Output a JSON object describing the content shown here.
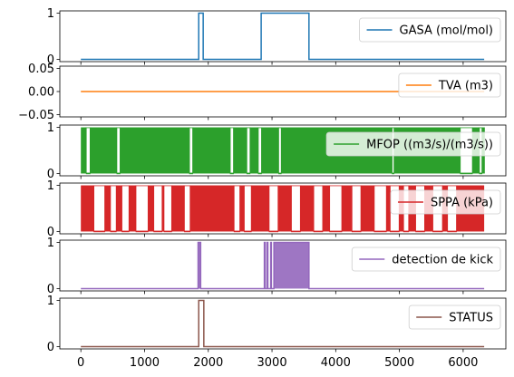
{
  "chart_data": {
    "type": "line",
    "shared_x_ticks": [
      0,
      1000,
      2000,
      3000,
      4000,
      5000,
      6000
    ],
    "xlim": [
      -330,
      6670
    ],
    "panels": [
      {
        "legend": "GASA (mol/mol)",
        "color": "#1f77b4",
        "ylim": [
          -0.05,
          1.05
        ],
        "yticks": [
          0,
          1
        ],
        "ytick_labels": [
          "0",
          "1"
        ],
        "mode": "step",
        "segments": [
          [
            0,
            0
          ],
          [
            1850,
            1
          ],
          [
            1920,
            0
          ],
          [
            2830,
            1
          ],
          [
            3580,
            0
          ],
          [
            6330,
            0
          ]
        ]
      },
      {
        "legend": "TVA (m3)",
        "color": "#ff7f0e",
        "ylim": [
          -0.055,
          0.055
        ],
        "yticks": [
          -0.05,
          0,
          0.05
        ],
        "ytick_labels": [
          "−0.05",
          "0.00",
          "0.05"
        ],
        "mode": "step",
        "segments": [
          [
            0,
            0
          ],
          [
            6330,
            0
          ]
        ]
      },
      {
        "legend": "MFOP ((m3/s)/(m3/s))",
        "color": "#2ca02c",
        "ylim": [
          -0.05,
          1.05
        ],
        "yticks": [
          0,
          1
        ],
        "ytick_labels": [
          "0",
          "1"
        ],
        "mode": "bands",
        "lows": [
          [
            80,
            150
          ],
          [
            560,
            620
          ],
          [
            1700,
            1760
          ],
          [
            2340,
            2400
          ],
          [
            2600,
            2660
          ],
          [
            2780,
            2840
          ],
          [
            3100,
            3150
          ],
          [
            4880,
            4920
          ],
          [
            5950,
            6150
          ],
          [
            6250,
            6300
          ]
        ],
        "dense_x": [
          0,
          6340
        ]
      },
      {
        "legend": "SPPA (kPa)",
        "color": "#d62728",
        "ylim": [
          -0.05,
          1.05
        ],
        "yticks": [
          0,
          1
        ],
        "ytick_labels": [
          "0",
          "1"
        ],
        "mode": "bands",
        "lows": [
          [
            200,
            380
          ],
          [
            460,
            560
          ],
          [
            640,
            760
          ],
          [
            860,
            1060
          ],
          [
            1140,
            1280
          ],
          [
            1300,
            1430
          ],
          [
            1620,
            1720
          ],
          [
            2400,
            2500
          ],
          [
            2560,
            2680
          ],
          [
            2950,
            3100
          ],
          [
            3300,
            3450
          ],
          [
            3650,
            3800
          ],
          [
            3900,
            4100
          ],
          [
            4250,
            4400
          ],
          [
            4600,
            4800
          ],
          [
            4850,
            5000
          ],
          [
            5060,
            5150
          ],
          [
            5250,
            5400
          ],
          [
            5520,
            5680
          ],
          [
            5750,
            5900
          ]
        ],
        "dense_x": [
          0,
          6330
        ]
      },
      {
        "legend": "detection de kick",
        "color": "#9467bd",
        "ylim": [
          -0.05,
          1.05
        ],
        "yticks": [
          0,
          1
        ],
        "ytick_labels": [
          "0",
          "1"
        ],
        "mode": "step",
        "segments": [
          [
            0,
            0
          ],
          [
            1840,
            1
          ],
          [
            1880,
            0
          ],
          [
            2880,
            1
          ],
          [
            2890,
            0
          ],
          [
            2920,
            1
          ],
          [
            2935,
            0
          ],
          [
            2980,
            1
          ],
          [
            2990,
            0
          ],
          [
            3030,
            1
          ],
          [
            3580,
            0
          ],
          [
            6330,
            0
          ]
        ],
        "fills": [
          [
            3030,
            3580
          ],
          [
            1840,
            1880
          ]
        ]
      },
      {
        "legend": "STATUS",
        "color": "#8c564b",
        "ylim": [
          -0.05,
          1.05
        ],
        "yticks": [
          0,
          1
        ],
        "ytick_labels": [
          "0",
          "1"
        ],
        "mode": "step",
        "segments": [
          [
            0,
            0
          ],
          [
            1850,
            1
          ],
          [
            1930,
            0
          ],
          [
            6330,
            0
          ]
        ]
      }
    ]
  }
}
